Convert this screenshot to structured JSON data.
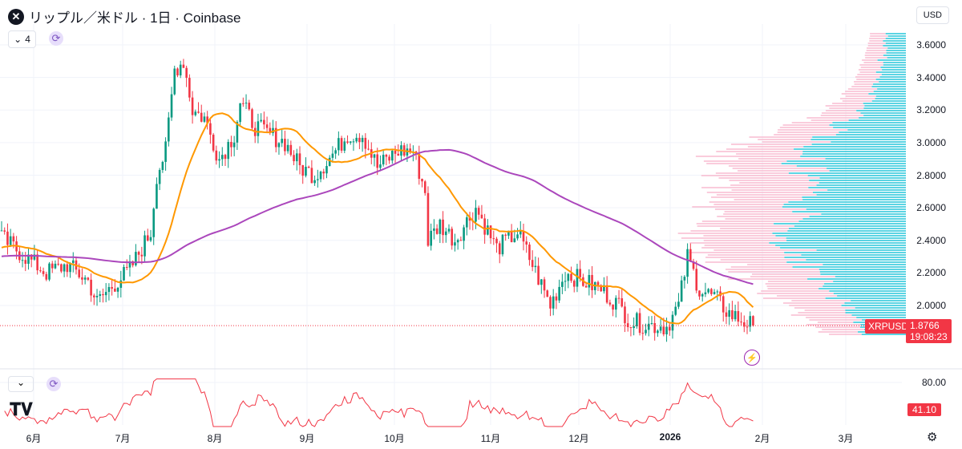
{
  "header": {
    "title": "リップル／米ドル · 1日 · Coinbase",
    "logo": "X",
    "currency": "USD",
    "collapse_label": "4",
    "collapse_icon": "chevron-down-icon",
    "sync_icon": "sync-icon"
  },
  "chart_data": {
    "type": "candlestick",
    "symbol": "XRPUSD",
    "last_price": "1.8766",
    "countdown": "19:08:23",
    "y_ticks": [
      "3.6000",
      "3.4000",
      "3.2000",
      "3.0000",
      "2.8000",
      "2.6000",
      "2.4000",
      "2.2000",
      "2.0000"
    ],
    "ylim": [
      1.78,
      3.68
    ],
    "x_ticks": [
      "6月",
      "7月",
      "8月",
      "9月",
      "10月",
      "11月",
      "12月",
      "2026",
      "2月",
      "3月"
    ],
    "closes": [
      [
        "2025-05-22",
        2.4
      ],
      [
        "2025-05-29",
        2.3
      ],
      [
        "2025-06-05",
        2.2
      ],
      [
        "2025-06-12",
        2.25
      ],
      [
        "2025-06-19",
        2.15
      ],
      [
        "2025-06-22",
        2.02
      ],
      [
        "2025-06-26",
        2.1
      ],
      [
        "2025-07-03",
        2.22
      ],
      [
        "2025-07-10",
        2.45
      ],
      [
        "2025-07-12",
        2.8
      ],
      [
        "2025-07-15",
        2.95
      ],
      [
        "2025-07-18",
        3.45
      ],
      [
        "2025-07-21",
        3.5
      ],
      [
        "2025-07-24",
        3.2
      ],
      [
        "2025-07-28",
        3.15
      ],
      [
        "2025-08-02",
        2.9
      ],
      [
        "2025-08-07",
        3.05
      ],
      [
        "2025-08-09",
        3.25
      ],
      [
        "2025-08-14",
        3.1
      ],
      [
        "2025-08-19",
        3.05
      ],
      [
        "2025-08-24",
        3.0
      ],
      [
        "2025-08-29",
        2.85
      ],
      [
        "2025-09-03",
        2.8
      ],
      [
        "2025-09-10",
        2.95
      ],
      [
        "2025-09-14",
        3.05
      ],
      [
        "2025-09-19",
        3.05
      ],
      [
        "2025-09-24",
        2.85
      ],
      [
        "2025-10-01",
        2.95
      ],
      [
        "2025-10-06",
        2.95
      ],
      [
        "2025-10-10",
        2.7
      ],
      [
        "2025-10-11",
        2.4
      ],
      [
        "2025-10-15",
        2.5
      ],
      [
        "2025-10-20",
        2.4
      ],
      [
        "2025-10-27",
        2.6
      ],
      [
        "2025-11-03",
        2.35
      ],
      [
        "2025-11-10",
        2.45
      ],
      [
        "2025-11-15",
        2.25
      ],
      [
        "2025-11-21",
        2.0
      ],
      [
        "2025-11-26",
        2.2
      ],
      [
        "2025-12-02",
        2.15
      ],
      [
        "2025-12-08",
        2.1
      ],
      [
        "2025-12-14",
        2.0
      ],
      [
        "2025-12-18",
        1.9
      ],
      [
        "2025-12-24",
        1.88
      ],
      [
        "2025-12-30",
        1.87
      ],
      [
        "2026-01-03",
        2.0
      ],
      [
        "2026-01-06",
        2.3
      ],
      [
        "2026-01-10",
        2.1
      ],
      [
        "2026-01-15",
        2.05
      ],
      [
        "2026-01-20",
        1.95
      ],
      [
        "2026-01-25",
        1.9
      ],
      [
        "2026-01-28",
        1.8766
      ]
    ],
    "colors": {
      "up": "#089981",
      "down": "#f23645",
      "ma_fast": "#ff9800",
      "ma_slow": "#ab47bc",
      "profile_up": "#26c6da",
      "profile_down": "#f8bbd0"
    },
    "oscillator": {
      "level_label": "80.00",
      "value": "41.10",
      "color": "#f23645"
    }
  },
  "footer": {
    "settings_icon": "gear-icon",
    "logo": "TV",
    "alert_icon": "lightning-icon"
  }
}
